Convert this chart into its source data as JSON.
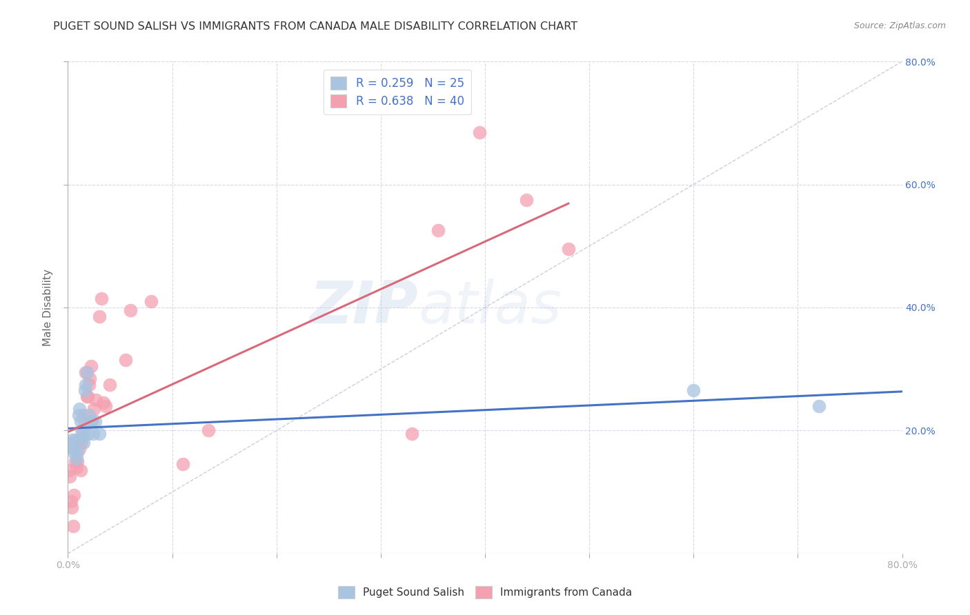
{
  "title": "PUGET SOUND SALISH VS IMMIGRANTS FROM CANADA MALE DISABILITY CORRELATION CHART",
  "source": "Source: ZipAtlas.com",
  "xlabel": "",
  "ylabel": "Male Disability",
  "xlim": [
    0.0,
    0.8
  ],
  "ylim": [
    0.0,
    0.8
  ],
  "xtick_labels": [
    "0.0%",
    "",
    "",
    "",
    "",
    "",
    "",
    "",
    "80.0%"
  ],
  "xtick_vals": [
    0.0,
    0.1,
    0.2,
    0.3,
    0.4,
    0.5,
    0.6,
    0.7,
    0.8
  ],
  "ytick_labels": [
    "20.0%",
    "40.0%",
    "60.0%",
    "80.0%"
  ],
  "ytick_vals": [
    0.2,
    0.4,
    0.6,
    0.8
  ],
  "grid_ytick_vals": [
    0.2,
    0.4,
    0.6,
    0.8
  ],
  "blue_R": 0.259,
  "blue_N": 25,
  "pink_R": 0.638,
  "pink_N": 40,
  "blue_color": "#a8c4e0",
  "pink_color": "#f4a0b0",
  "blue_line_color": "#4472c4",
  "pink_line_color": "#d9687a",
  "trend_line_color": "#c8c8d8",
  "watermark_zip": "ZIP",
  "watermark_atlas": "atlas",
  "blue_points_x": [
    0.001,
    0.003,
    0.004,
    0.005,
    0.006,
    0.007,
    0.008,
    0.009,
    0.01,
    0.011,
    0.012,
    0.013,
    0.014,
    0.015,
    0.016,
    0.017,
    0.018,
    0.019,
    0.02,
    0.022,
    0.024,
    0.026,
    0.03,
    0.6,
    0.72
  ],
  "blue_points_y": [
    0.18,
    0.175,
    0.185,
    0.17,
    0.165,
    0.185,
    0.155,
    0.165,
    0.225,
    0.235,
    0.215,
    0.2,
    0.19,
    0.18,
    0.265,
    0.275,
    0.295,
    0.195,
    0.225,
    0.215,
    0.195,
    0.215,
    0.195,
    0.265,
    0.24
  ],
  "pink_points_x": [
    0.001,
    0.002,
    0.003,
    0.004,
    0.005,
    0.006,
    0.007,
    0.008,
    0.009,
    0.01,
    0.011,
    0.012,
    0.013,
    0.014,
    0.015,
    0.016,
    0.017,
    0.018,
    0.019,
    0.02,
    0.021,
    0.022,
    0.023,
    0.025,
    0.027,
    0.03,
    0.032,
    0.034,
    0.036,
    0.04,
    0.055,
    0.06,
    0.08,
    0.11,
    0.135,
    0.33,
    0.355,
    0.395,
    0.44,
    0.48
  ],
  "pink_points_y": [
    0.135,
    0.125,
    0.085,
    0.075,
    0.045,
    0.095,
    0.15,
    0.14,
    0.15,
    0.185,
    0.17,
    0.135,
    0.18,
    0.2,
    0.225,
    0.215,
    0.295,
    0.255,
    0.255,
    0.275,
    0.285,
    0.305,
    0.215,
    0.235,
    0.25,
    0.385,
    0.415,
    0.245,
    0.24,
    0.275,
    0.315,
    0.395,
    0.41,
    0.145,
    0.2,
    0.195,
    0.525,
    0.685,
    0.575,
    0.495
  ],
  "background_color": "#ffffff",
  "grid_color": "#d8d8e8"
}
